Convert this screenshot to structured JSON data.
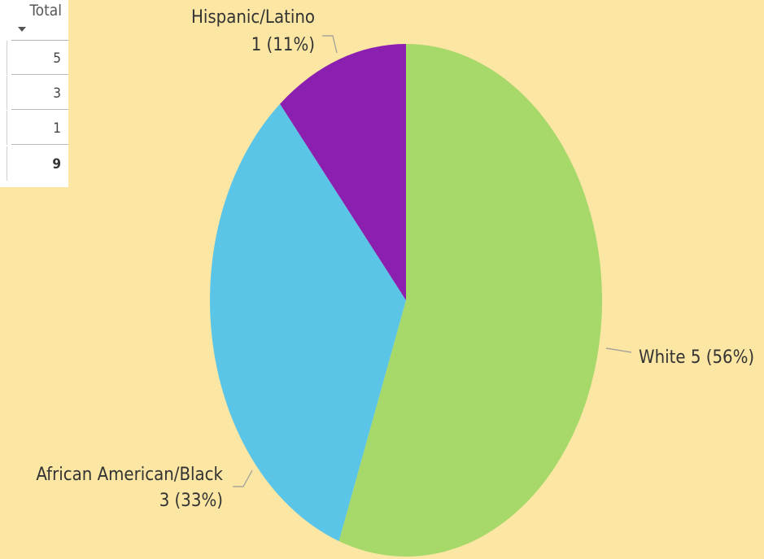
{
  "table": {
    "header": "Total",
    "rows": [
      "5",
      "3",
      "1"
    ],
    "total": "9"
  },
  "chart_data": {
    "type": "pie",
    "categories": [
      "White",
      "African American/Black",
      "Hispanic/Latino"
    ],
    "values": [
      5,
      3,
      1
    ],
    "percents": [
      "56%",
      "33%",
      "11%"
    ],
    "colors": [
      "#A7D86A",
      "#5BC5E7",
      "#8B1FB0"
    ],
    "labels": [
      [
        "White 5 (56%)"
      ],
      [
        "African American/Black",
        "3 (33%)"
      ],
      [
        "Hispanic/Latino",
        "1 (11%)"
      ]
    ],
    "start_angle": "12 o'clock",
    "direction": "clockwise",
    "legend": "none"
  }
}
